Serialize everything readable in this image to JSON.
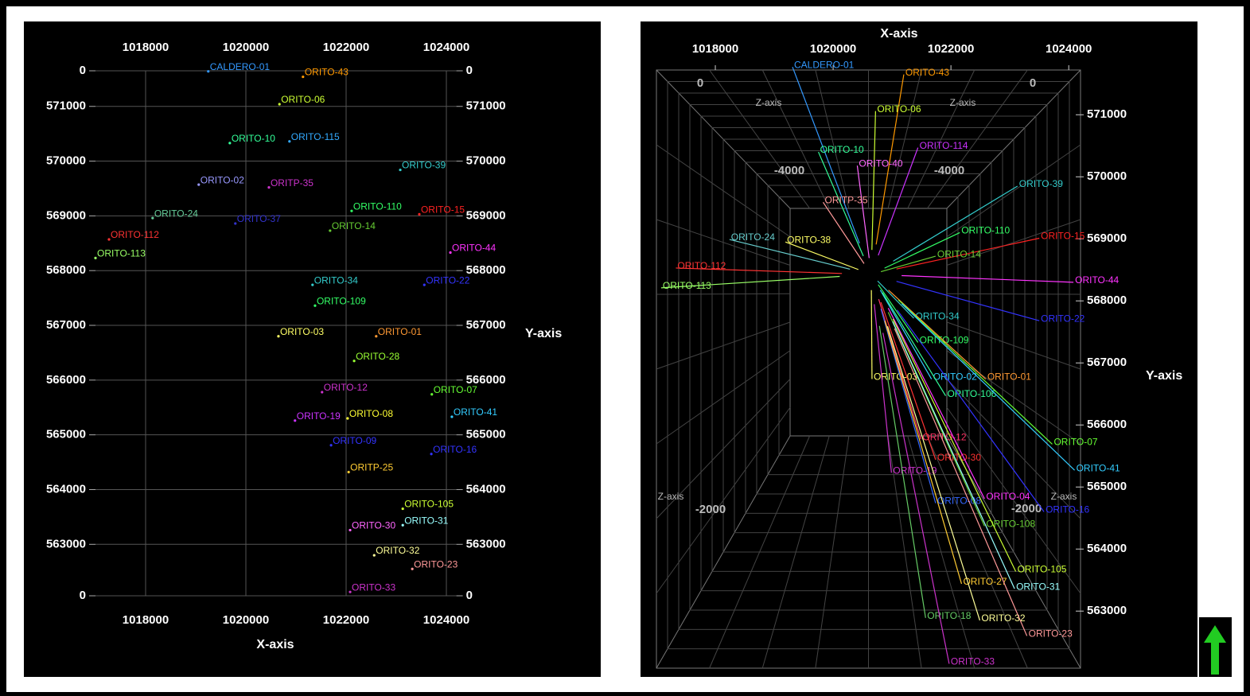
{
  "chart_data": [
    {
      "type": "scatter",
      "xlabel": "X-axis",
      "ylabel": "Y-axis",
      "xlim": [
        1017000,
        1024200
      ],
      "xticks": [
        1018000,
        1020000,
        1022000,
        1024000
      ],
      "ylim": [
        562060,
        571650
      ],
      "yticks": [
        {
          "value": 562060,
          "label": "0"
        },
        563000,
        564000,
        565000,
        566000,
        567000,
        568000,
        569000,
        570000,
        571000,
        {
          "value": 571650,
          "label": "0"
        }
      ],
      "grid": true,
      "points": [
        {
          "name": "CALDERO-01",
          "color": "#3399ff",
          "x": 1019250,
          "y": 571640
        },
        {
          "name": "ORITO-43",
          "color": "#ff9900",
          "x": 1021140,
          "y": 571540
        },
        {
          "name": "ORITO-06",
          "color": "#ccff33",
          "x": 1020670,
          "y": 571040
        },
        {
          "name": "ORITO-10",
          "color": "#33ff99",
          "x": 1019680,
          "y": 570330
        },
        {
          "name": "ORITO-115",
          "color": "#33aaff",
          "x": 1020870,
          "y": 570360
        },
        {
          "name": "ORITO-39",
          "color": "#33cccc",
          "x": 1023080,
          "y": 569840
        },
        {
          "name": "ORITO-02",
          "color": "#9999ff",
          "x": 1019060,
          "y": 569570
        },
        {
          "name": "ORITP-35",
          "color": "#cc33cc",
          "x": 1020460,
          "y": 569520
        },
        {
          "name": "ORITO-110",
          "color": "#33ff66",
          "x": 1022110,
          "y": 569090
        },
        {
          "name": "ORITO-15",
          "color": "#ff2222",
          "x": 1023460,
          "y": 569030
        },
        {
          "name": "ORITO-24",
          "color": "#66cc99",
          "x": 1018140,
          "y": 568960
        },
        {
          "name": "ORITO-37",
          "color": "#3333cc",
          "x": 1019790,
          "y": 568860
        },
        {
          "name": "ORITO-14",
          "color": "#66cc33",
          "x": 1021680,
          "y": 568730
        },
        {
          "name": "ORITO-112",
          "color": "#ff3333",
          "x": 1017270,
          "y": 568570
        },
        {
          "name": "ORITO-113",
          "color": "#99ff66",
          "x": 1017000,
          "y": 568230
        },
        {
          "name": "ORITO-44",
          "color": "#ff33ff",
          "x": 1024080,
          "y": 568330
        },
        {
          "name": "ORITO-34",
          "color": "#33cccc",
          "x": 1021330,
          "y": 567740
        },
        {
          "name": "ORITO-22",
          "color": "#3333ff",
          "x": 1023560,
          "y": 567740
        },
        {
          "name": "ORITO-109",
          "color": "#33ff66",
          "x": 1021380,
          "y": 567360
        },
        {
          "name": "ORITO-03",
          "color": "#ffff66",
          "x": 1020650,
          "y": 566800
        },
        {
          "name": "ORITO-01",
          "color": "#ff9933",
          "x": 1022600,
          "y": 566800
        },
        {
          "name": "ORITO-28",
          "color": "#99ff33",
          "x": 1022160,
          "y": 566350
        },
        {
          "name": "ORITO-12",
          "color": "#cc33cc",
          "x": 1021520,
          "y": 565780
        },
        {
          "name": "ORITO-07",
          "color": "#66ff33",
          "x": 1023710,
          "y": 565740
        },
        {
          "name": "ORITO-19",
          "color": "#cc33ff",
          "x": 1020980,
          "y": 565260
        },
        {
          "name": "ORITO-08",
          "color": "#ffff33",
          "x": 1022030,
          "y": 565300
        },
        {
          "name": "ORITO-41",
          "color": "#33ccff",
          "x": 1024110,
          "y": 565330
        },
        {
          "name": "ORITO-09",
          "color": "#3333ff",
          "x": 1021700,
          "y": 564810
        },
        {
          "name": "ORITO-16",
          "color": "#3333ff",
          "x": 1023700,
          "y": 564650
        },
        {
          "name": "ORITP-25",
          "color": "#ffcc33",
          "x": 1022050,
          "y": 564320
        },
        {
          "name": "ORITO-105",
          "color": "#ccff33",
          "x": 1023130,
          "y": 563650
        },
        {
          "name": "ORITO-31",
          "color": "#99ffff",
          "x": 1023130,
          "y": 563350
        },
        {
          "name": "ORITO-30",
          "color": "#ff66ff",
          "x": 1022080,
          "y": 563260
        },
        {
          "name": "ORITO-32",
          "color": "#ffff99",
          "x": 1022560,
          "y": 562800
        },
        {
          "name": "ORITO-23",
          "color": "#ff9999",
          "x": 1023320,
          "y": 562550
        },
        {
          "name": "ORITO-33",
          "color": "#cc33cc",
          "x": 1022080,
          "y": 562130
        }
      ]
    },
    {
      "type": "scatter3d",
      "xlabel": "X-axis",
      "ylabel": "Y-axis",
      "zlabel": "Z-axis",
      "xlim": [
        1017000,
        1024200
      ],
      "xticks": [
        1018000,
        1020000,
        1022000,
        1024000
      ],
      "ylim": [
        562080,
        571760
      ],
      "yticks": [
        563000,
        564000,
        565000,
        566000,
        567000,
        568000,
        569000,
        570000,
        571000
      ],
      "zticks": [
        0,
        -4000,
        -2000
      ],
      "points": [
        {
          "name": "CALDERO-01",
          "color": "#3399ff",
          "x": 1019310,
          "y": 571770
        },
        {
          "name": "ORITO-43",
          "color": "#ff9900",
          "x": 1021200,
          "y": 571650
        },
        {
          "name": "ORITO-06",
          "color": "#ccff33",
          "x": 1020720,
          "y": 571060
        },
        {
          "name": "ORITO-114",
          "color": "#cc33ff",
          "x": 1021440,
          "y": 570470
        },
        {
          "name": "ORITO-10",
          "color": "#33ff99",
          "x": 1019750,
          "y": 570400
        },
        {
          "name": "ORITO-40",
          "color": "#ff66ff",
          "x": 1020410,
          "y": 570180
        },
        {
          "name": "ORITO-39",
          "color": "#33cccc",
          "x": 1023130,
          "y": 569850
        },
        {
          "name": "ORITP-35",
          "color": "#ff9999",
          "x": 1019830,
          "y": 569590
        },
        {
          "name": "ORITO-110",
          "color": "#33ff66",
          "x": 1022150,
          "y": 569100
        },
        {
          "name": "ORITO-15",
          "color": "#ff2222",
          "x": 1023500,
          "y": 569010
        },
        {
          "name": "ORITO-24",
          "color": "#66cccc",
          "x": 1018240,
          "y": 568990
        },
        {
          "name": "ORITO-38",
          "color": "#ffff66",
          "x": 1019190,
          "y": 568950
        },
        {
          "name": "ORITO-14",
          "color": "#66cc33",
          "x": 1021740,
          "y": 568720
        },
        {
          "name": "ORITO-112",
          "color": "#ff3333",
          "x": 1017330,
          "y": 568530
        },
        {
          "name": "ORITO-44",
          "color": "#ff33ff",
          "x": 1024080,
          "y": 568300
        },
        {
          "name": "ORITO-113",
          "color": "#99ff66",
          "x": 1017080,
          "y": 568210
        },
        {
          "name": "ORITO-34",
          "color": "#33cccc",
          "x": 1021370,
          "y": 567720
        },
        {
          "name": "ORITO-22",
          "color": "#3333ff",
          "x": 1023500,
          "y": 567680
        },
        {
          "name": "ORITO-109",
          "color": "#33ff66",
          "x": 1021440,
          "y": 567330
        },
        {
          "name": "ORITO-03",
          "color": "#ffff66",
          "x": 1020660,
          "y": 566740
        },
        {
          "name": "ORITO-02",
          "color": "#33ccff",
          "x": 1021670,
          "y": 566740
        },
        {
          "name": "ORITO-01",
          "color": "#ff9933",
          "x": 1022590,
          "y": 566740
        },
        {
          "name": "ORITO-106",
          "color": "#33ff99",
          "x": 1021910,
          "y": 566470
        },
        {
          "name": "ORITO-07",
          "color": "#66ff33",
          "x": 1023720,
          "y": 565690
        },
        {
          "name": "ORITO-41",
          "color": "#33ccff",
          "x": 1024100,
          "y": 565270
        },
        {
          "name": "ORITO-12",
          "color": "#ff3366",
          "x": 1021490,
          "y": 565770
        },
        {
          "name": "ORITO-30",
          "color": "#ff3333",
          "x": 1021740,
          "y": 565440
        },
        {
          "name": "ORITO-19",
          "color": "#cc33cc",
          "x": 1020990,
          "y": 565230
        },
        {
          "name": "ORITO-04",
          "color": "#ff33ff",
          "x": 1022570,
          "y": 564810
        },
        {
          "name": "ORITO-16",
          "color": "#3333ff",
          "x": 1023580,
          "y": 564600
        },
        {
          "name": "ORITO-08",
          "color": "#3366ff",
          "x": 1021740,
          "y": 564740
        },
        {
          "name": "ORITO-108",
          "color": "#66cc33",
          "x": 1022570,
          "y": 564370
        },
        {
          "name": "ORITO-105",
          "color": "#ccff33",
          "x": 1023100,
          "y": 563640
        },
        {
          "name": "ORITO-27",
          "color": "#ffcc33",
          "x": 1022180,
          "y": 563440
        },
        {
          "name": "ORITO-31",
          "color": "#99ffff",
          "x": 1023080,
          "y": 563360
        },
        {
          "name": "ORITO-18",
          "color": "#66cc66",
          "x": 1021570,
          "y": 562890
        },
        {
          "name": "ORITO-32",
          "color": "#ffff99",
          "x": 1022490,
          "y": 562850
        },
        {
          "name": "ORITO-23",
          "color": "#ff9999",
          "x": 1023290,
          "y": 562600
        },
        {
          "name": "ORITO-33",
          "color": "#cc33cc",
          "x": 1021970,
          "y": 562150
        }
      ]
    }
  ]
}
